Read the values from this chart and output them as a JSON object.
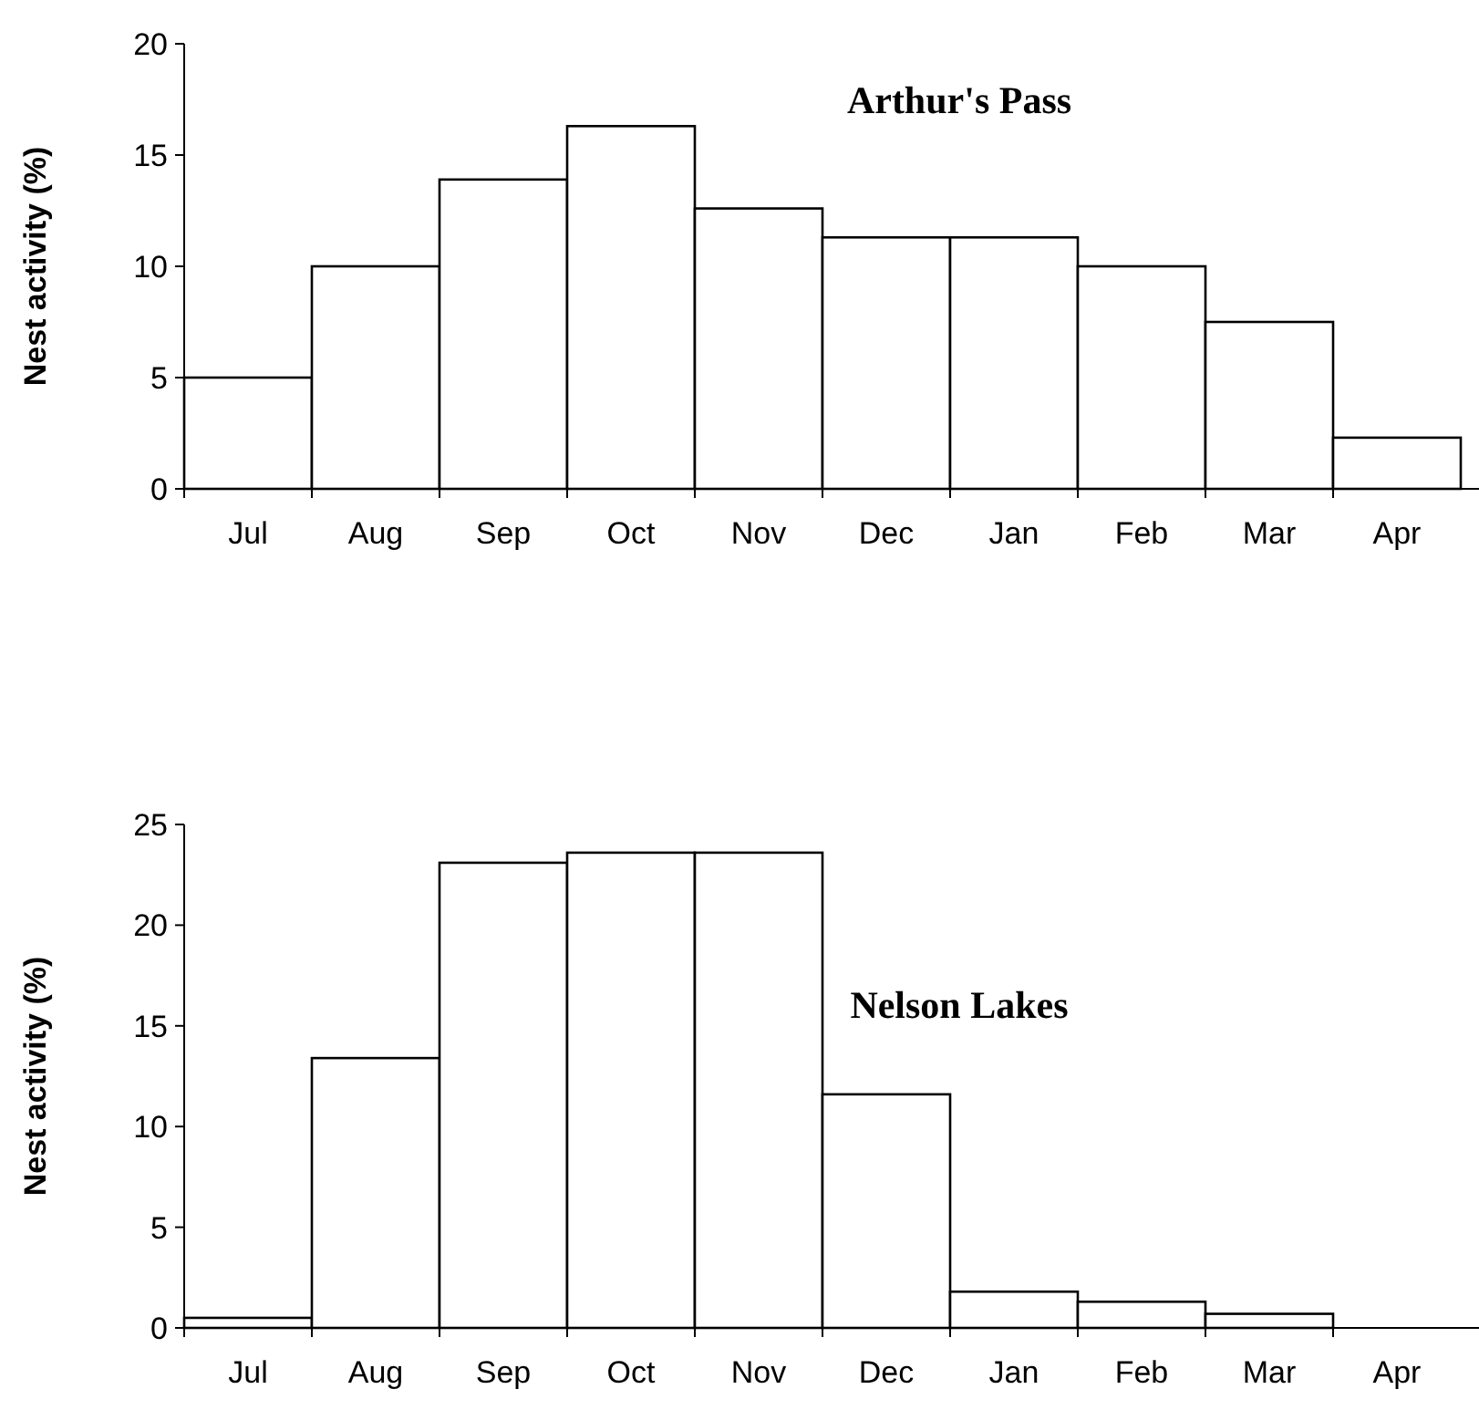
{
  "chart_data": [
    {
      "type": "bar",
      "title": "Arthur's Pass",
      "ylabel": "Nest activity (%)",
      "categories": [
        "Jul",
        "Aug",
        "Sep",
        "Oct",
        "Nov",
        "Dec",
        "Jan",
        "Feb",
        "Mar",
        "Apr"
      ],
      "series": [
        {
          "color": "#ffffff",
          "values": [
            5,
            10,
            13.9,
            16.3,
            12.6,
            11.3,
            11.3,
            10,
            7.5,
            2.3
          ]
        }
      ],
      "ylim": [
        0,
        20
      ],
      "yticks": [
        0,
        5,
        10,
        15,
        20
      ],
      "grid": false
    },
    {
      "type": "bar",
      "title": "Nelson Lakes",
      "ylabel": "Nest activity (%)",
      "categories": [
        "Jul",
        "Aug",
        "Sep",
        "Oct",
        "Nov",
        "Dec",
        "Jan",
        "Feb",
        "Mar",
        "Apr"
      ],
      "series": [
        {
          "color": "#ffffff",
          "values": [
            0.5,
            13.4,
            23.1,
            23.6,
            23.6,
            11.6,
            1.8,
            1.3,
            0.7,
            0
          ]
        }
      ],
      "ylim": [
        0,
        25
      ],
      "yticks": [
        0,
        5,
        10,
        15,
        20,
        25
      ],
      "grid": false
    }
  ]
}
